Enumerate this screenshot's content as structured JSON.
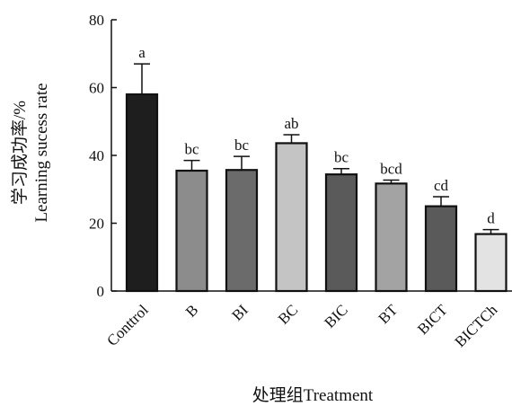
{
  "chart_data": {
    "type": "bar",
    "categories": [
      "Conttrol",
      "B",
      "BI",
      "BC",
      "BIC",
      "BT",
      "BICT",
      "BICTCh"
    ],
    "values": [
      58,
      35.5,
      35.7,
      43.6,
      34.4,
      31.7,
      25,
      16.8
    ],
    "errors": [
      9,
      3,
      4,
      2.5,
      1.7,
      1,
      2.8,
      1.3
    ],
    "significance": [
      "a",
      "bc",
      "bc",
      "ab",
      "bc",
      "bcd",
      "cd",
      "d"
    ],
    "bar_colors": [
      "#1e1e1e",
      "#8c8c8c",
      "#6b6b6b",
      "#c4c4c4",
      "#5a5a5a",
      "#a3a3a3",
      "#5a5a5a",
      "#e3e3e3"
    ],
    "xlabel": "处理组Treatment",
    "ylabel_cn": "学习成功率/%",
    "ylabel_en": "Learning sucess rate",
    "ylim": [
      0,
      80
    ],
    "yticks": [
      0,
      20,
      40,
      60,
      80
    ],
    "grid": false,
    "legend": "none"
  }
}
